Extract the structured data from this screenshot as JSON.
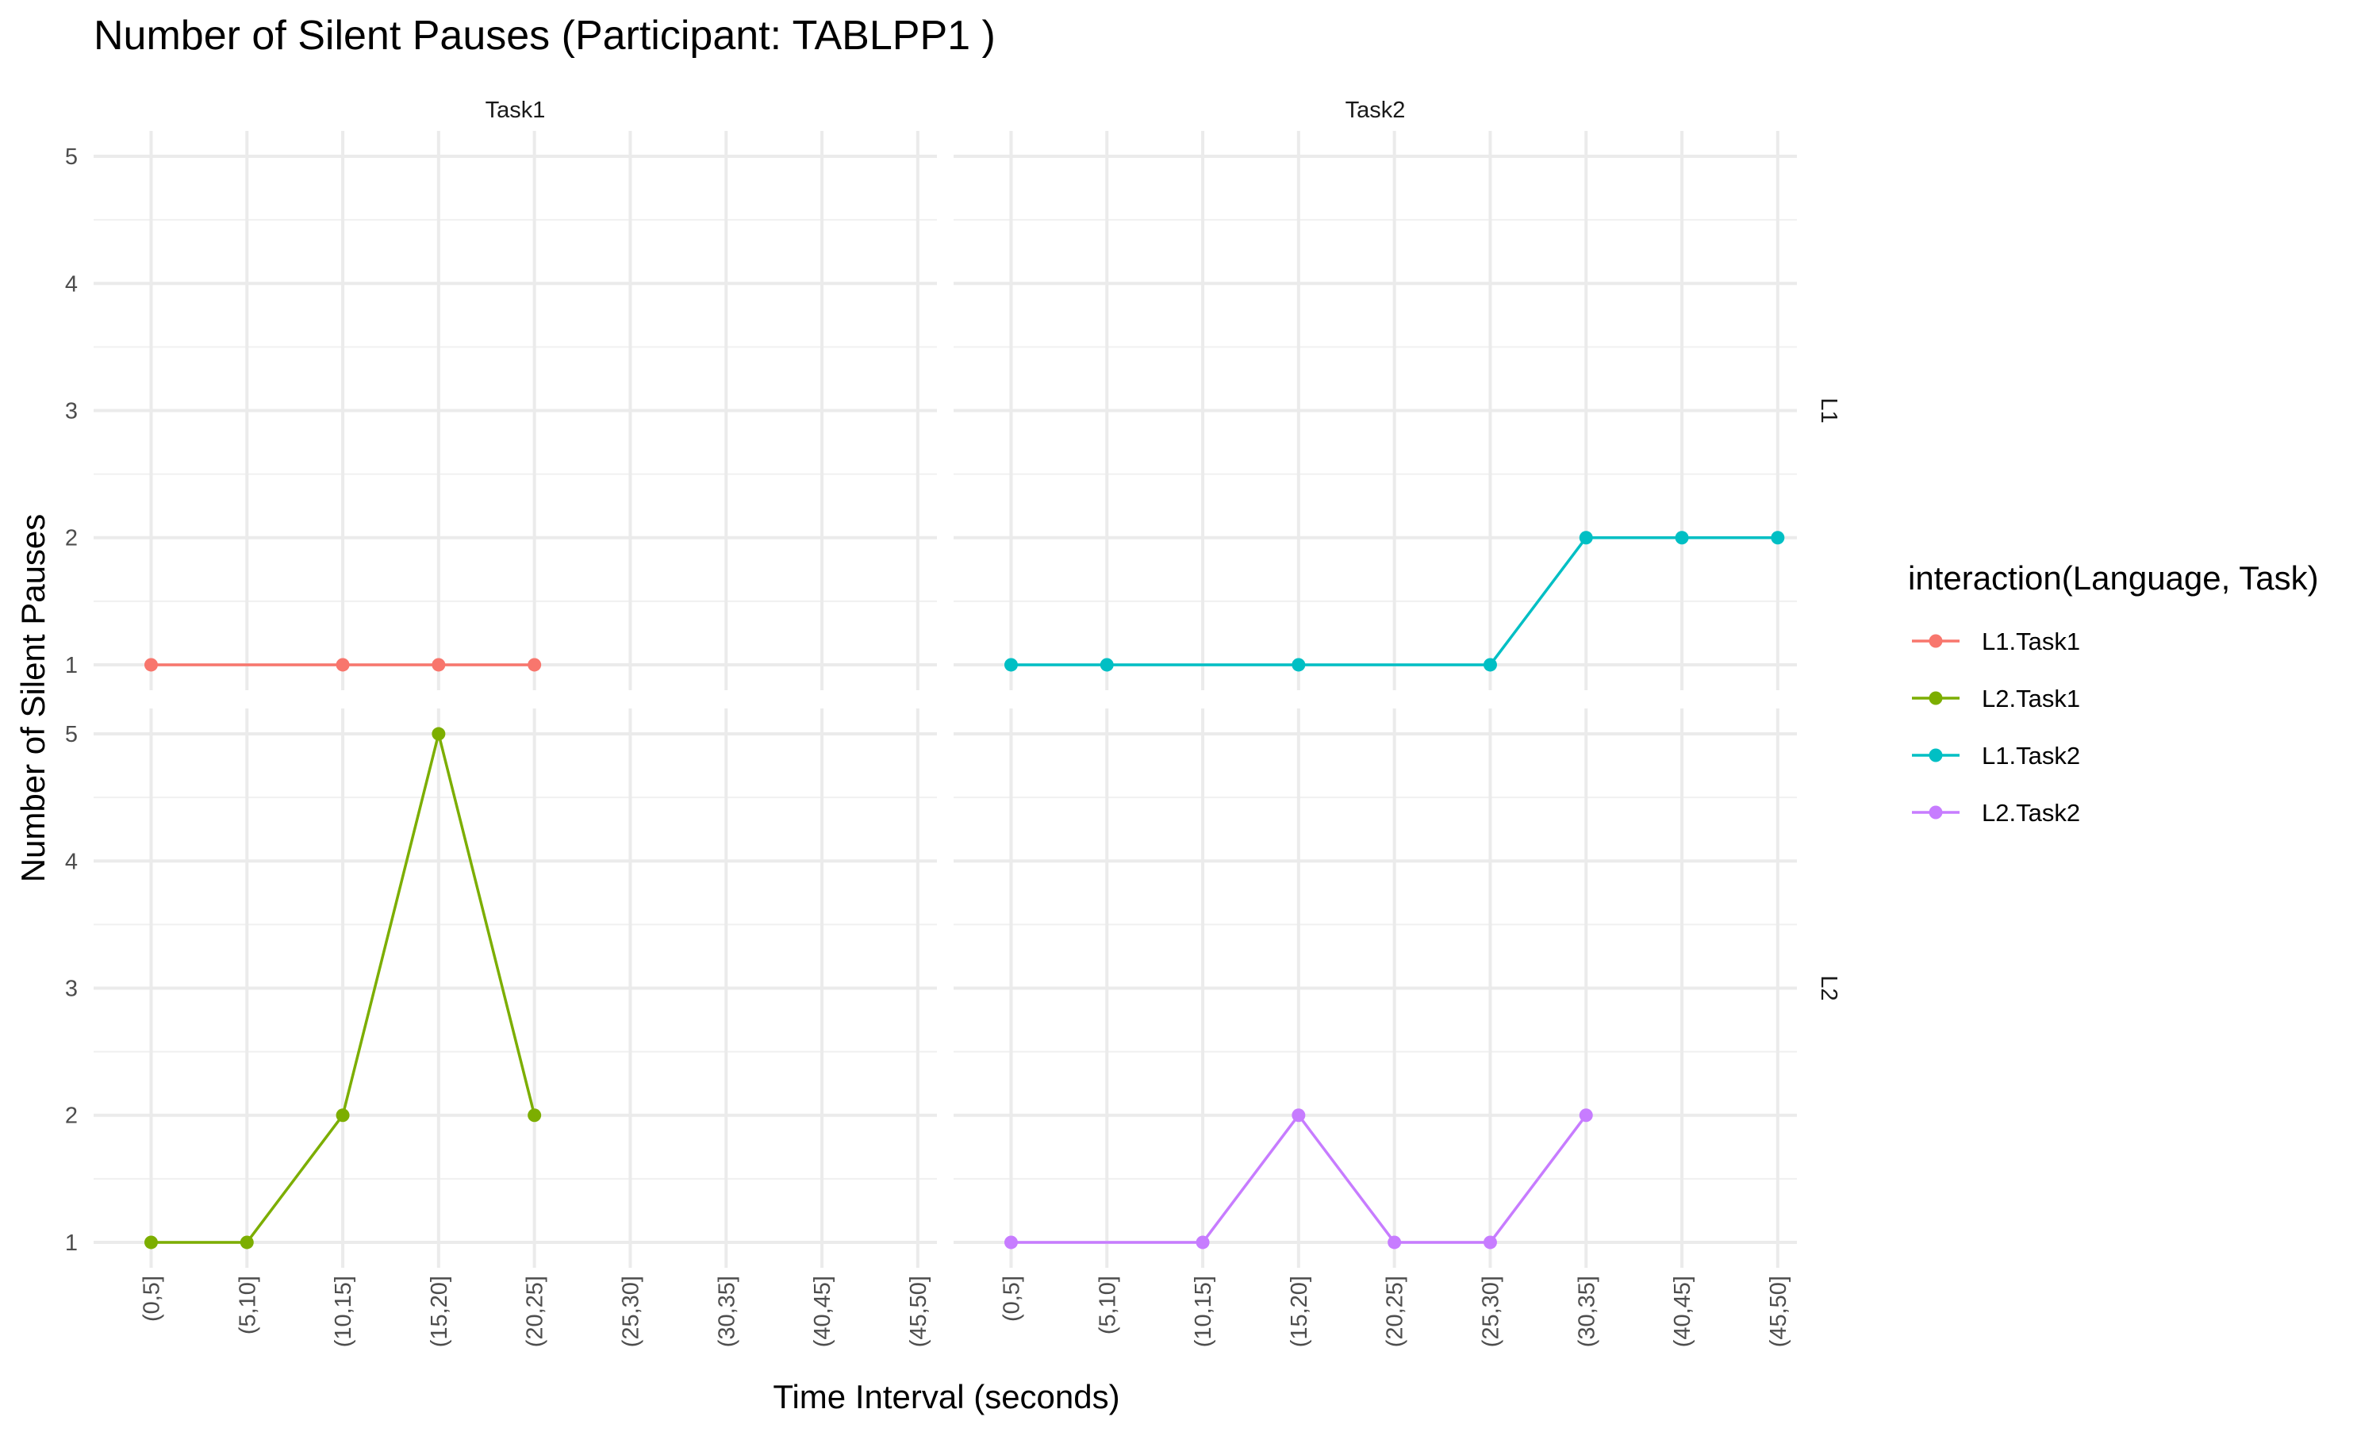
{
  "chart_data": {
    "type": "line",
    "title": "Number of Silent Pauses (Participant: TABLPP1 )",
    "xlabel": "Time Interval (seconds)",
    "ylabel": "Number of Silent Pauses",
    "categories": [
      "(0,5]",
      "(5,10]",
      "(10,15]",
      "(15,20]",
      "(20,25]",
      "(25,30]",
      "(30,35]",
      "(40,45]",
      "(45,50]"
    ],
    "y_ticks": [
      1,
      2,
      3,
      4,
      5
    ],
    "ylim": [
      0.8,
      5.2
    ],
    "grid": true,
    "facet_columns": [
      "Task1",
      "Task2"
    ],
    "facet_rows": [
      "L1",
      "L2"
    ],
    "legend": {
      "title": "interaction(Language, Task)",
      "position": "right"
    },
    "series": [
      {
        "name": "L1.Task1",
        "row": "L1",
        "col": "Task1",
        "color": "#F8766D",
        "points": [
          [
            "(0,5]",
            1
          ],
          [
            "(10,15]",
            1
          ],
          [
            "(15,20]",
            1
          ],
          [
            "(20,25]",
            1
          ]
        ]
      },
      {
        "name": "L2.Task1",
        "row": "L2",
        "col": "Task1",
        "color": "#7CAE00",
        "points": [
          [
            "(0,5]",
            1
          ],
          [
            "(5,10]",
            1
          ],
          [
            "(10,15]",
            2
          ],
          [
            "(15,20]",
            5
          ],
          [
            "(20,25]",
            2
          ]
        ]
      },
      {
        "name": "L1.Task2",
        "row": "L1",
        "col": "Task2",
        "color": "#00BFC4",
        "points": [
          [
            "(0,5]",
            1
          ],
          [
            "(5,10]",
            1
          ],
          [
            "(15,20]",
            1
          ],
          [
            "(25,30]",
            1
          ],
          [
            "(30,35]",
            2
          ],
          [
            "(40,45]",
            2
          ],
          [
            "(45,50]",
            2
          ]
        ]
      },
      {
        "name": "L2.Task2",
        "row": "L2",
        "col": "Task2",
        "color": "#C77CFF",
        "points": [
          [
            "(0,5]",
            1
          ],
          [
            "(10,15]",
            1
          ],
          [
            "(15,20]",
            2
          ],
          [
            "(20,25]",
            1
          ],
          [
            "(25,30]",
            1
          ],
          [
            "(30,35]",
            2
          ]
        ]
      }
    ]
  }
}
